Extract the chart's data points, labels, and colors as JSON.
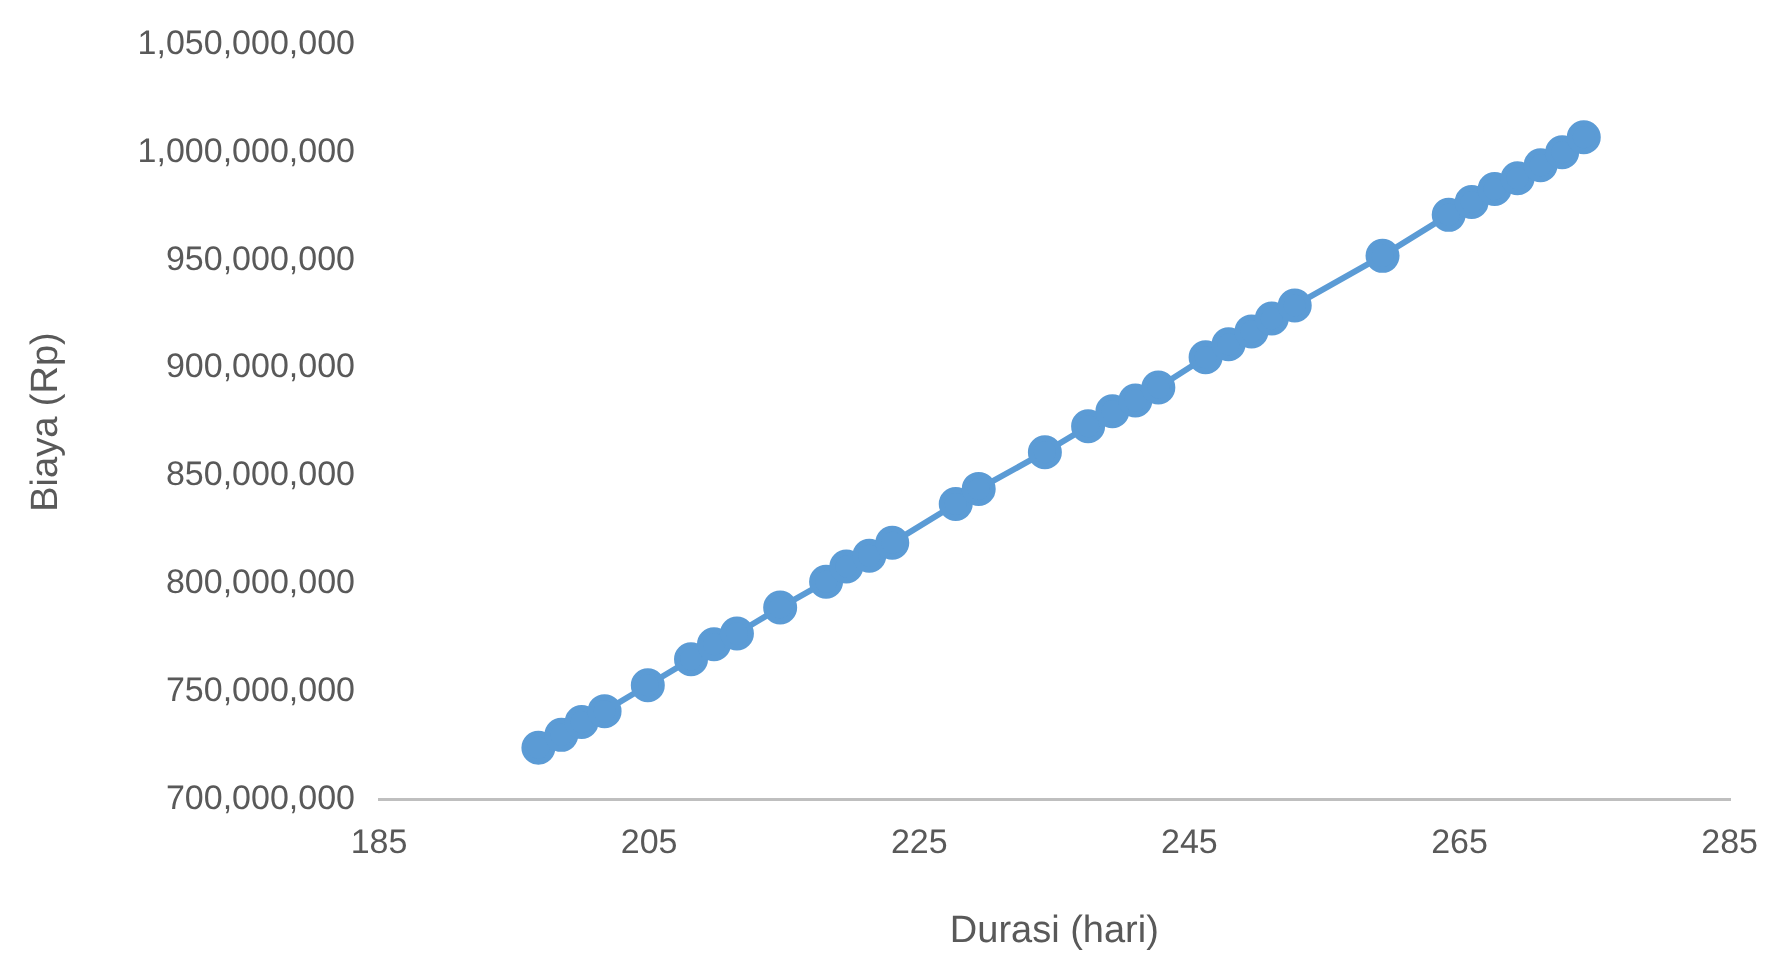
{
  "chart_data": {
    "type": "line",
    "xlabel": "Durasi (hari)",
    "ylabel": "Biaya (Rp)",
    "x": [
      196.8,
      198.5,
      200.0,
      201.7,
      204.9,
      208.1,
      209.8,
      211.5,
      214.7,
      218.1,
      219.6,
      221.3,
      223.0,
      227.7,
      229.4,
      234.3,
      237.5,
      239.3,
      241.0,
      242.7,
      246.2,
      247.9,
      249.6,
      251.1,
      252.8,
      259.3,
      264.2,
      265.9,
      267.6,
      269.3,
      271.0,
      272.6,
      274.2
    ],
    "series": [
      {
        "color": "#5b9bd5",
        "values": [
          724000000,
          730000000,
          736000000,
          741000000,
          753000000,
          765000000,
          772000000,
          777000000,
          789000000,
          801000000,
          808000000,
          813000000,
          819000000,
          837000000,
          844000000,
          861000000,
          873000000,
          880000000,
          885000000,
          891000000,
          905000000,
          911000000,
          917000000,
          923000000,
          929000000,
          952000000,
          971000000,
          977000000,
          983000000,
          988000000,
          994000000,
          1000000000,
          1007000000
        ]
      }
    ],
    "xlim": [
      185,
      285
    ],
    "xticks": [
      185,
      205,
      225,
      245,
      265,
      285
    ],
    "ylim": [
      700000000,
      1050000000
    ],
    "yticks": [
      {
        "value": 700000000,
        "label": "700,000,000"
      },
      {
        "value": 750000000,
        "label": "750,000,000"
      },
      {
        "value": 800000000,
        "label": "800,000,000"
      },
      {
        "value": 850000000,
        "label": "850,000,000"
      },
      {
        "value": 900000000,
        "label": "900,000,000"
      },
      {
        "value": 950000000,
        "label": "950,000,000"
      },
      {
        "value": 1000000000,
        "label": "1,000,000,000"
      },
      {
        "value": 1050000000,
        "label": "1,050,000,000"
      }
    ],
    "grid": false,
    "legend": false,
    "marker": "circle",
    "line_style": "solid"
  }
}
